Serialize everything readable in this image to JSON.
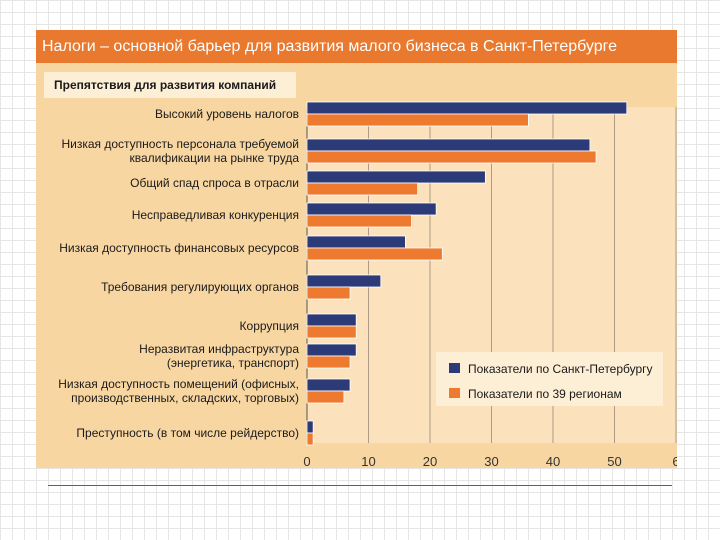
{
  "chart_data": {
    "type": "bar",
    "orientation": "horizontal",
    "title": "Налоги – основной барьер для развития малого бизнеса в Санкт-Петербурге",
    "subtitle": "Препятствия для развития компаний",
    "categories": [
      [
        "Высокий уровень налогов"
      ],
      [
        "Низкая доступность персонала требуемой",
        "квалификации на рынке труда"
      ],
      [
        "Общий спад спроса в отрасли"
      ],
      [
        "Несправедливая конкуренция"
      ],
      [
        "Низкая доступность финансовых ресурсов"
      ],
      [
        "Требования регулирующих органов"
      ],
      [
        "Коррупция"
      ],
      [
        "Неразвитая инфраструктура",
        "(энергетика, транспорт)"
      ],
      [
        "Низкая доступность помещений (офисных,",
        "производственных, складских, торговых)"
      ],
      [
        "Преступность (в том числе рейдерство)"
      ]
    ],
    "series": [
      {
        "name": "Показатели по Санкт-Петербургу",
        "color": "#2d3a78",
        "values": [
          52,
          46,
          29,
          21,
          16,
          12,
          8,
          8,
          7,
          1
        ]
      },
      {
        "name": "Показатели по 39 регионам",
        "color": "#ee7a30",
        "values": [
          36,
          47,
          18,
          17,
          22,
          7,
          8,
          7,
          6,
          1
        ]
      }
    ],
    "xlim": [
      0,
      60
    ],
    "xticks": [
      "0",
      "10",
      "20",
      "30",
      "40",
      "50",
      "6"
    ],
    "xlabel": "",
    "ylabel": "",
    "grid": "vertical",
    "legend": "bottom-right"
  }
}
